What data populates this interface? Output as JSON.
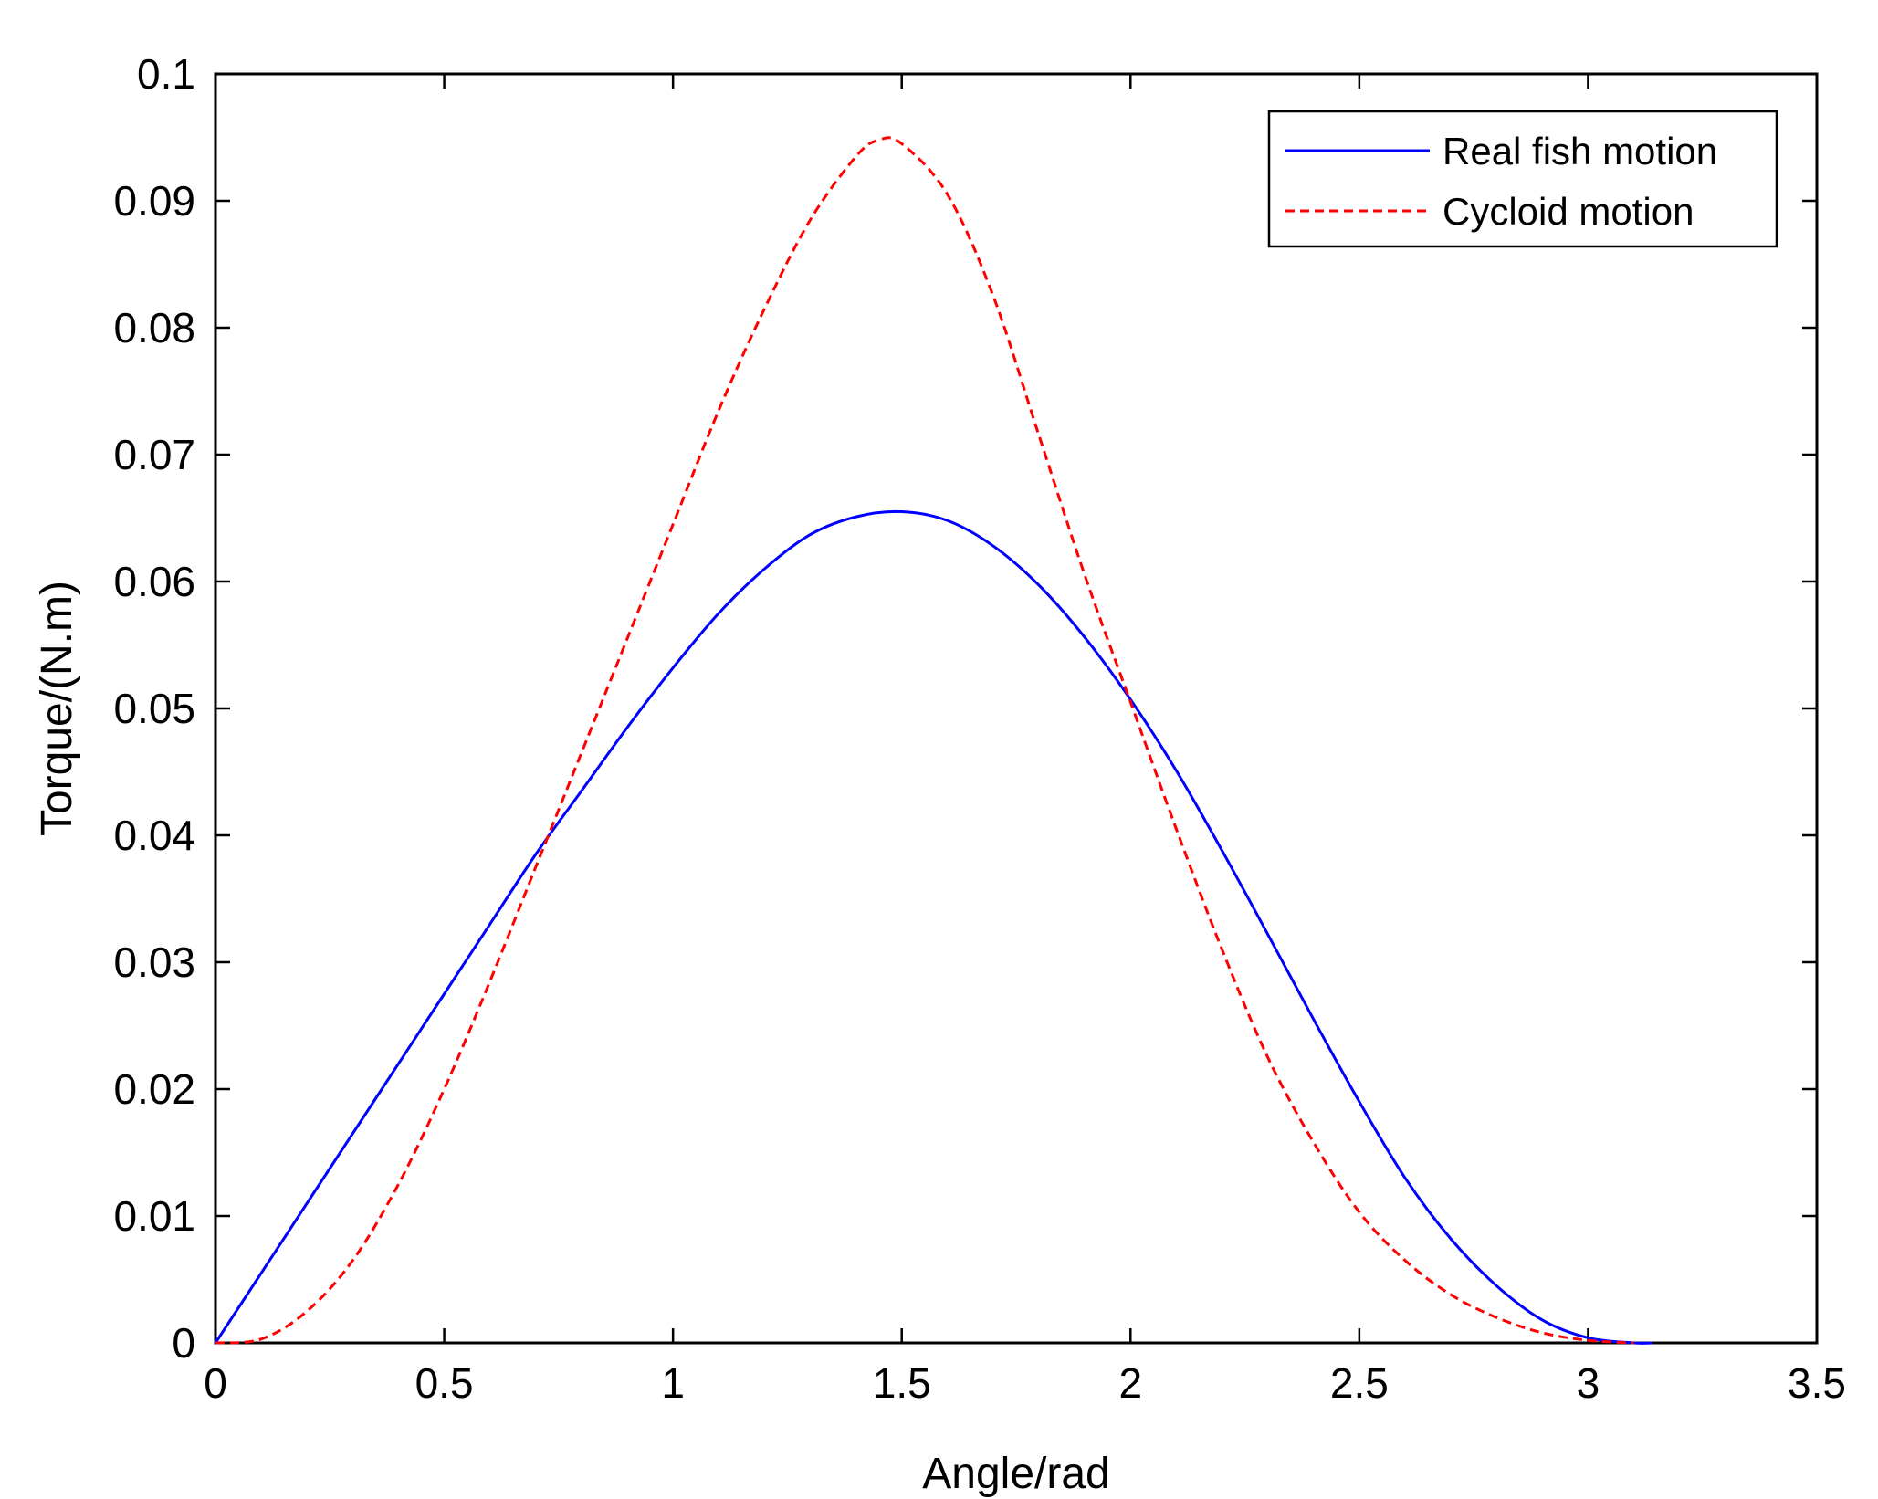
{
  "chart_data": {
    "type": "line",
    "title": "",
    "xlabel": "Angle/rad",
    "ylabel": "Torque/(N.m)",
    "xlim": [
      0,
      3.5
    ],
    "ylim": [
      0,
      0.1
    ],
    "xticks": [
      0,
      0.5,
      1,
      1.5,
      2,
      2.5,
      3,
      3.5
    ],
    "xtick_labels": [
      "0",
      "0.5",
      "1",
      "1.5",
      "2",
      "2.5",
      "3",
      "3.5"
    ],
    "yticks": [
      0,
      0.01,
      0.02,
      0.03,
      0.04,
      0.05,
      0.06,
      0.07,
      0.08,
      0.09,
      0.1
    ],
    "ytick_labels": [
      "0",
      "0.01",
      "0.02",
      "0.03",
      "0.04",
      "0.05",
      "0.06",
      "0.07",
      "0.08",
      "0.09",
      "0.1"
    ],
    "grid": false,
    "legend_position": "top-right",
    "series": [
      {
        "name": "Real fish motion",
        "color": "#0000ff",
        "style": "solid",
        "x": [
          0,
          0.1,
          0.2,
          0.3,
          0.4,
          0.5,
          0.6,
          0.7,
          0.8,
          0.9,
          1.0,
          1.1,
          1.2,
          1.3,
          1.4,
          1.5,
          1.6,
          1.7,
          1.8,
          1.9,
          2.0,
          2.1,
          2.2,
          2.3,
          2.4,
          2.5,
          2.6,
          2.7,
          2.8,
          2.9,
          3.0,
          3.1,
          3.14
        ],
        "y": [
          0,
          0.0055,
          0.011,
          0.0165,
          0.022,
          0.0275,
          0.033,
          0.0385,
          0.0435,
          0.0485,
          0.0532,
          0.0575,
          0.061,
          0.0637,
          0.0651,
          0.0655,
          0.0648,
          0.0628,
          0.0597,
          0.0556,
          0.0507,
          0.0451,
          0.0388,
          0.0322,
          0.0255,
          0.019,
          0.013,
          0.0082,
          0.0045,
          0.0018,
          0.0004,
          0.0,
          0.0
        ]
      },
      {
        "name": "Cycloid motion",
        "color": "#ff0000",
        "style": "dashed",
        "x": [
          0,
          0.1,
          0.2,
          0.3,
          0.4,
          0.5,
          0.6,
          0.7,
          0.8,
          0.9,
          1.0,
          1.1,
          1.2,
          1.3,
          1.4,
          1.45,
          1.5,
          1.6,
          1.7,
          1.8,
          1.9,
          2.0,
          2.1,
          2.2,
          2.3,
          2.4,
          2.5,
          2.6,
          2.7,
          2.8,
          2.9,
          3.0,
          3.1
        ],
        "y": [
          0,
          0.0003,
          0.0025,
          0.0065,
          0.0125,
          0.02,
          0.0285,
          0.0375,
          0.0465,
          0.0555,
          0.0645,
          0.0735,
          0.0815,
          0.0885,
          0.0935,
          0.0948,
          0.0945,
          0.0905,
          0.0825,
          0.0715,
          0.0605,
          0.0505,
          0.0405,
          0.031,
          0.0225,
          0.0158,
          0.0103,
          0.0065,
          0.0038,
          0.002,
          0.0008,
          0.0002,
          0.0
        ]
      }
    ]
  }
}
